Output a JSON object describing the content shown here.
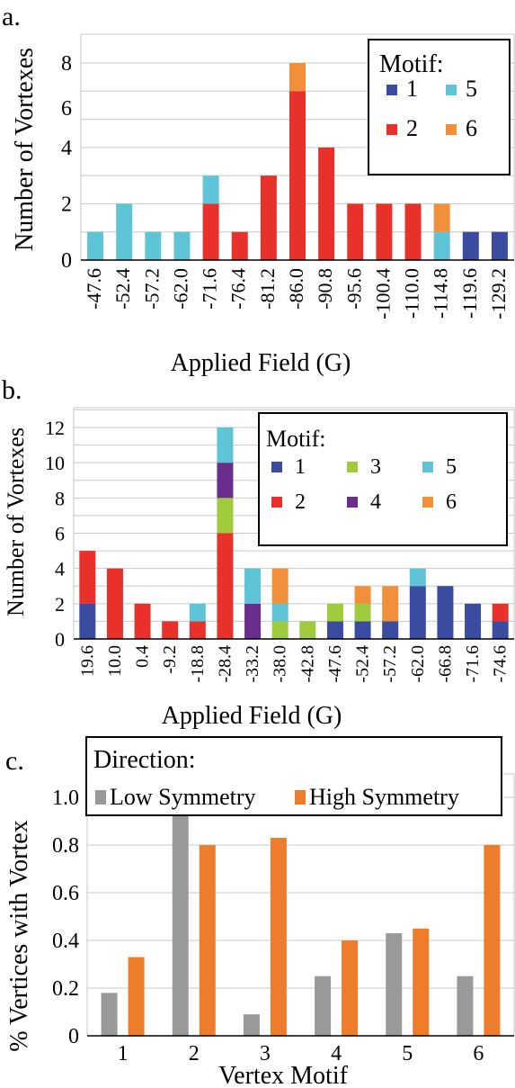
{
  "chart_data": [
    {
      "panel_label": "a.",
      "type": "bar",
      "stacked": true,
      "xlabel": "Applied Field (G)",
      "ylabel": "Number of Vortexes",
      "y_tick_labels": [
        "0",
        "2",
        "4",
        "6",
        "8"
      ],
      "y_axis_note": "non-uniform label spacing: each label sits on every other gridline, gridlines at 0,1,2,3,4,5,6,7",
      "ylim": [
        0,
        7
      ],
      "grid": true,
      "legend": {
        "title": "Motif:",
        "position": "top-right",
        "entries": [
          "1",
          "5",
          "2",
          "6"
        ]
      },
      "categories": [
        "-47.6",
        "-52.4",
        "-57.2",
        "-62.0",
        "-71.6",
        "-76.4",
        "-81.2",
        "-86.0",
        "-90.8",
        "-95.6",
        "-100.4",
        "-110.0",
        "-114.8",
        "-119.6",
        "-129.2"
      ],
      "series": [
        {
          "name": "1",
          "color": "#3a4ba0",
          "values": [
            0,
            0,
            0,
            0,
            0,
            0,
            0,
            0,
            0,
            0,
            0,
            0,
            0,
            1,
            1
          ]
        },
        {
          "name": "2",
          "color": "#e8312a",
          "values": [
            0,
            0,
            0,
            0,
            2,
            1,
            3,
            6,
            4,
            2,
            2,
            2,
            0,
            0,
            0
          ]
        },
        {
          "name": "5",
          "color": "#5ec4d6",
          "values": [
            1,
            2,
            1,
            1,
            1,
            0,
            0,
            0,
            0,
            0,
            0,
            0,
            1,
            0,
            0
          ]
        },
        {
          "name": "6",
          "color": "#f28f3b",
          "values": [
            0,
            0,
            0,
            0,
            0,
            0,
            0,
            1,
            0,
            0,
            0,
            0,
            1,
            0,
            0
          ]
        }
      ]
    },
    {
      "panel_label": "b.",
      "type": "bar",
      "stacked": true,
      "xlabel": "Applied Field (G)",
      "ylabel": "Number of Vortexes",
      "y_ticks": [
        0,
        2,
        4,
        6,
        8,
        10,
        12
      ],
      "ylim": [
        0,
        13
      ],
      "grid": true,
      "legend": {
        "title": "Motif:",
        "position": "top-right",
        "entries": [
          "1",
          "3",
          "5",
          "2",
          "4",
          "6"
        ]
      },
      "categories": [
        "19.6",
        "10.0",
        "0.4",
        "-9.2",
        "-18.8",
        "-28.4",
        "-33.2",
        "-38.0",
        "-42.8",
        "-47.6",
        "-52.4",
        "-57.2",
        "-62.0",
        "-66.8",
        "-71.6",
        "-74.6"
      ],
      "series": [
        {
          "name": "1",
          "color": "#3a4ba0",
          "values": [
            2,
            0,
            0,
            0,
            0,
            0,
            0,
            0,
            0,
            1,
            1,
            1,
            3,
            3,
            2,
            1
          ]
        },
        {
          "name": "2",
          "color": "#e8312a",
          "values": [
            3,
            4,
            2,
            1,
            1,
            6,
            0,
            0,
            0,
            0,
            0,
            0,
            0,
            0,
            0,
            1
          ]
        },
        {
          "name": "3",
          "color": "#9fcb3c",
          "values": [
            0,
            0,
            0,
            0,
            0,
            2,
            0,
            1,
            1,
            1,
            1,
            0,
            0,
            0,
            0,
            0
          ]
        },
        {
          "name": "4",
          "color": "#6a2d8c",
          "values": [
            0,
            0,
            0,
            0,
            0,
            2,
            2,
            0,
            0,
            0,
            0,
            0,
            0,
            0,
            0,
            0
          ]
        },
        {
          "name": "5",
          "color": "#5ec4d6",
          "values": [
            0,
            0,
            0,
            0,
            1,
            2,
            2,
            1,
            0,
            0,
            0,
            0,
            1,
            0,
            0,
            0
          ]
        },
        {
          "name": "6",
          "color": "#f28f3b",
          "values": [
            0,
            0,
            0,
            0,
            0,
            0,
            0,
            2,
            0,
            0,
            1,
            2,
            0,
            0,
            0,
            0
          ]
        }
      ]
    },
    {
      "panel_label": "c.",
      "type": "bar",
      "stacked": false,
      "xlabel": "Vertex Motif",
      "ylabel": "% Vertices with Vortex",
      "y_ticks": [
        "0",
        "0.2",
        "0.4",
        "0.6",
        "0.8",
        "1.0"
      ],
      "ylim": [
        0,
        1.0
      ],
      "grid": true,
      "legend": {
        "title": "Direction:",
        "position": "top"
      },
      "categories": [
        "1",
        "2",
        "3",
        "4",
        "5",
        "6"
      ],
      "series": [
        {
          "name": "Low Symmetry",
          "color": "#999999",
          "values": [
            0.18,
            0.94,
            0.09,
            0.25,
            0.43,
            0.25
          ]
        },
        {
          "name": "High Symmetry",
          "color": "#ee7d2b",
          "values": [
            0.33,
            0.8,
            0.83,
            0.4,
            0.45,
            0.8
          ]
        }
      ]
    }
  ]
}
